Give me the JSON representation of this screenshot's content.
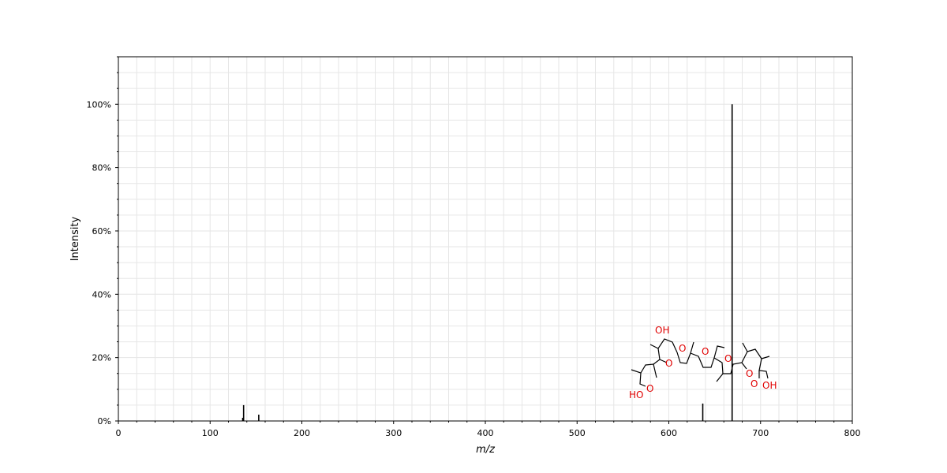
{
  "chart_data": {
    "type": "bar",
    "subtype": "mass-spectrum-stick",
    "title": "",
    "xlabel": "m/z",
    "ylabel": "Intensity",
    "xlim": [
      0,
      800
    ],
    "ylim": [
      0,
      115
    ],
    "xticks": [
      0,
      100,
      200,
      300,
      400,
      500,
      600,
      700,
      800
    ],
    "xtick_labels": [
      "0",
      "100",
      "200",
      "300",
      "400",
      "500",
      "600",
      "700",
      "800"
    ],
    "yticks": [
      0,
      20,
      40,
      60,
      80,
      100
    ],
    "ytick_labels": [
      "0%",
      "20%",
      "40%",
      "60%",
      "80%",
      "100%"
    ],
    "grid": true,
    "peaks": [
      {
        "mz": 135.5,
        "intensity": 1
      },
      {
        "mz": 136.5,
        "intensity": 5
      },
      {
        "mz": 153,
        "intensity": 2
      },
      {
        "mz": 637,
        "intensity": 5.5
      },
      {
        "mz": 669,
        "intensity": 100
      }
    ]
  },
  "structure": {
    "icon": "molecule-structure-icon",
    "atom_labels": [
      "OH",
      "O",
      "O",
      "O",
      "O",
      "HO",
      "O",
      "O",
      "O",
      "OH"
    ],
    "atom_color": "#e00000"
  }
}
